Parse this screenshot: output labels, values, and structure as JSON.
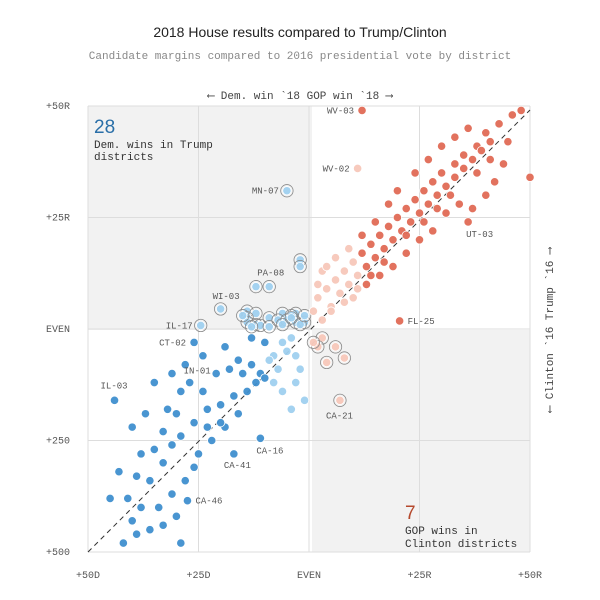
{
  "title": "2018 House results compared to Trump/Clinton",
  "subtitle": "Candidate margins compared to 2016 presidential vote by district",
  "top_axis_note": "⟵ Dem. win `18   GOP win `18 ⟶",
  "right_axis_note": "⟵ Clinton `16   Trump `16 ⟶",
  "colors": {
    "dem_dark": "#3f8fcf",
    "dem_light": "#9fd0ef",
    "gop_dark": "#e06a55",
    "gop_light": "#f7c7b9",
    "highlight_box": "#f2f2f2",
    "annotation_blue": "#2a6fa8",
    "annotation_red": "#b5492d"
  },
  "annotations": {
    "dem_count": "28",
    "dem_text_1": "Dem. wins in Trump",
    "dem_text_2": "districts",
    "gop_count": "7",
    "gop_text_1": "GOP wins in",
    "gop_text_2": "Clinton districts"
  },
  "chart_data": {
    "type": "scatter",
    "title": "2018 House results compared to Trump/Clinton",
    "subtitle": "Candidate margins compared to 2016 presidential vote by district",
    "xlabel": "⟵ Dem. win `18   GOP win `18 ⟶",
    "ylabel": "⟵ Clinton `16   Trump `16 ⟶",
    "xlim": [
      -50,
      50
    ],
    "ylim": [
      -50,
      50
    ],
    "x_ticks": [
      {
        "value": -50,
        "label": "+50D"
      },
      {
        "value": -25,
        "label": "+25D"
      },
      {
        "value": 0,
        "label": "EVEN"
      },
      {
        "value": 25,
        "label": "+25R"
      },
      {
        "value": 50,
        "label": "+50R"
      }
    ],
    "y_ticks": [
      {
        "value": 50,
        "label": "+50R"
      },
      {
        "value": 25,
        "label": "+25R"
      },
      {
        "value": 0,
        "label": "EVEN"
      },
      {
        "value": -25,
        "label": "+250"
      },
      {
        "value": -50,
        "label": "+500"
      }
    ],
    "grid": true,
    "reference_line": "y = x (dashed)",
    "labeled_points": [
      {
        "label": "WV-03",
        "x": 12,
        "y": 49
      },
      {
        "label": "WV-02",
        "x": 11,
        "y": 36
      },
      {
        "label": "MN-07",
        "x": -5,
        "y": 31
      },
      {
        "label": "UT-03",
        "x": 36,
        "y": 24
      },
      {
        "label": "PA-08",
        "x": -9,
        "y": 9.5
      },
      {
        "label": "WI-03",
        "x": -20,
        "y": 4.5
      },
      {
        "label": "IL-17",
        "x": -24.5,
        "y": 0.8
      },
      {
        "label": "FL-25",
        "x": 20.5,
        "y": 1.8
      },
      {
        "label": "CT-02",
        "x": -26,
        "y": -3
      },
      {
        "label": "IN-01",
        "x": -27,
        "y": -12
      },
      {
        "label": "IL-03",
        "x": -44,
        "y": -16
      },
      {
        "label": "CA-21",
        "x": 7,
        "y": -16
      },
      {
        "label": "CA-16",
        "x": -11,
        "y": -24.5
      },
      {
        "label": "CA-41",
        "x": -17,
        "y": -28
      },
      {
        "label": "CA-46",
        "x": -27.5,
        "y": -38.5
      }
    ],
    "series": [
      {
        "name": "Dem. wins in Trump districts",
        "count": 28,
        "points": [
          [
            -5,
            31
          ],
          [
            -2,
            15.5
          ],
          [
            -2,
            14
          ],
          [
            -9,
            9.5
          ],
          [
            -12,
            9.5
          ],
          [
            -20,
            4.5
          ],
          [
            -14,
            4
          ],
          [
            -12,
            3.5
          ],
          [
            -6,
            3.5
          ],
          [
            -3,
            3.5
          ],
          [
            -4,
            3
          ],
          [
            -14,
            2.5
          ],
          [
            -9,
            2.5
          ],
          [
            -7,
            2
          ],
          [
            -5,
            2
          ],
          [
            -3,
            1.5
          ],
          [
            -1,
            1.5
          ],
          [
            -14,
            1.5
          ],
          [
            -6,
            1
          ],
          [
            -12,
            1
          ],
          [
            -2,
            1
          ],
          [
            -24.5,
            0.8
          ],
          [
            -11,
            0.8
          ],
          [
            -13,
            0.5
          ],
          [
            -9,
            0.5
          ],
          [
            -4,
            2.5
          ],
          [
            -15,
            3
          ],
          [
            -1,
            3
          ]
        ]
      },
      {
        "name": "GOP wins in Clinton districts",
        "count": 7,
        "points": [
          [
            7,
            -16
          ],
          [
            6,
            -4
          ],
          [
            3,
            -2
          ],
          [
            2,
            -4
          ],
          [
            1,
            -3
          ],
          [
            4,
            -7.5
          ],
          [
            8,
            -6.5
          ]
        ]
      },
      {
        "name": "Dem. wins in Clinton districts",
        "points": [
          [
            -44,
            -16
          ],
          [
            -43,
            -32
          ],
          [
            -41,
            -38
          ],
          [
            -40,
            -43
          ],
          [
            -42,
            -48
          ],
          [
            -38,
            -40
          ],
          [
            -36,
            -34
          ],
          [
            -33,
            -30
          ],
          [
            -31,
            -26
          ],
          [
            -29,
            -24
          ],
          [
            -26,
            -21
          ],
          [
            -23,
            -18
          ],
          [
            -20,
            -17
          ],
          [
            -17,
            -15
          ],
          [
            -15,
            -10
          ],
          [
            -13,
            -8
          ],
          [
            -11,
            -10
          ],
          [
            -8,
            -6
          ],
          [
            -6,
            -3
          ],
          [
            -4,
            -2
          ],
          [
            -27,
            -12
          ],
          [
            -26,
            -3
          ],
          [
            -30,
            -19
          ],
          [
            -33,
            -23
          ],
          [
            -35,
            -27
          ],
          [
            -38,
            -28
          ],
          [
            -39,
            -33
          ],
          [
            -36,
            -45
          ],
          [
            -34,
            -40
          ],
          [
            -31,
            -37
          ],
          [
            -28,
            -34
          ],
          [
            -25,
            -28
          ],
          [
            -22,
            -25
          ],
          [
            -19,
            -22
          ],
          [
            -16,
            -19
          ],
          [
            -14,
            -14
          ],
          [
            -12,
            -12
          ],
          [
            -10,
            -11
          ],
          [
            -9,
            -7
          ],
          [
            -7,
            -9
          ],
          [
            -5,
            -5
          ],
          [
            -3,
            -6
          ],
          [
            -2,
            -9
          ],
          [
            -28,
            -8
          ],
          [
            -24,
            -14
          ],
          [
            -21,
            -10
          ],
          [
            -18,
            -9
          ],
          [
            -16,
            -7
          ],
          [
            -11,
            -24.5
          ],
          [
            -17,
            -28
          ],
          [
            -27.5,
            -38.5
          ],
          [
            -1,
            -16
          ],
          [
            -3,
            -12
          ],
          [
            -4,
            -18
          ],
          [
            -6,
            -14
          ],
          [
            -8,
            -12
          ],
          [
            -37,
            -19
          ],
          [
            -40,
            -22
          ],
          [
            -33,
            -44
          ],
          [
            -30,
            -42
          ],
          [
            -45,
            -38
          ],
          [
            -39,
            -46
          ],
          [
            -29,
            -48
          ],
          [
            -26,
            -31
          ],
          [
            -23,
            -22
          ],
          [
            -20,
            -21
          ],
          [
            -32,
            -18
          ],
          [
            -35,
            -12
          ],
          [
            -24,
            -6
          ],
          [
            -19,
            -4
          ],
          [
            -13,
            -2
          ],
          [
            -10,
            -3
          ],
          [
            -29,
            -14
          ],
          [
            -31,
            -10
          ]
        ]
      },
      {
        "name": "GOP wins in Trump districts",
        "points": [
          [
            12,
            49
          ],
          [
            11,
            36
          ],
          [
            36,
            24
          ],
          [
            20.5,
            1.8
          ],
          [
            48,
            49
          ],
          [
            46,
            48
          ],
          [
            43,
            46
          ],
          [
            40,
            44
          ],
          [
            38,
            41
          ],
          [
            35,
            39
          ],
          [
            33,
            37
          ],
          [
            30,
            35
          ],
          [
            28,
            33
          ],
          [
            26,
            31
          ],
          [
            24,
            29
          ],
          [
            22,
            27
          ],
          [
            20,
            25
          ],
          [
            18,
            23
          ],
          [
            16,
            21
          ],
          [
            14,
            19
          ],
          [
            12,
            17
          ],
          [
            10,
            15
          ],
          [
            8,
            13
          ],
          [
            6,
            11
          ],
          [
            4,
            9
          ],
          [
            2,
            7
          ],
          [
            1,
            4
          ],
          [
            3,
            2
          ],
          [
            5,
            5
          ],
          [
            7,
            8
          ],
          [
            9,
            10
          ],
          [
            11,
            12
          ],
          [
            13,
            14
          ],
          [
            15,
            16
          ],
          [
            17,
            18
          ],
          [
            19,
            20
          ],
          [
            21,
            22
          ],
          [
            23,
            24
          ],
          [
            25,
            26
          ],
          [
            27,
            28
          ],
          [
            29,
            30
          ],
          [
            31,
            32
          ],
          [
            33,
            34
          ],
          [
            35,
            36
          ],
          [
            37,
            38
          ],
          [
            39,
            40
          ],
          [
            41,
            42
          ],
          [
            50,
            34
          ],
          [
            44,
            37
          ],
          [
            42,
            33
          ],
          [
            40,
            30
          ],
          [
            37,
            27
          ],
          [
            34,
            28
          ],
          [
            31,
            26
          ],
          [
            28,
            22
          ],
          [
            25,
            20
          ],
          [
            22,
            17
          ],
          [
            19,
            14
          ],
          [
            16,
            12
          ],
          [
            13,
            10
          ],
          [
            10,
            7
          ],
          [
            24,
            35
          ],
          [
            27,
            38
          ],
          [
            30,
            41
          ],
          [
            33,
            43
          ],
          [
            36,
            45
          ],
          [
            20,
            31
          ],
          [
            18,
            28
          ],
          [
            15,
            24
          ],
          [
            12,
            21
          ],
          [
            9,
            18
          ],
          [
            6,
            16
          ],
          [
            3,
            13
          ],
          [
            2,
            10
          ],
          [
            4,
            14
          ],
          [
            26,
            24
          ],
          [
            29,
            27
          ],
          [
            32,
            30
          ],
          [
            22,
            21
          ],
          [
            17,
            15
          ],
          [
            14,
            12
          ],
          [
            11,
            9
          ],
          [
            8,
            6
          ],
          [
            5,
            4
          ],
          [
            38,
            35
          ],
          [
            41,
            38
          ],
          [
            45,
            42
          ]
        ]
      }
    ]
  }
}
